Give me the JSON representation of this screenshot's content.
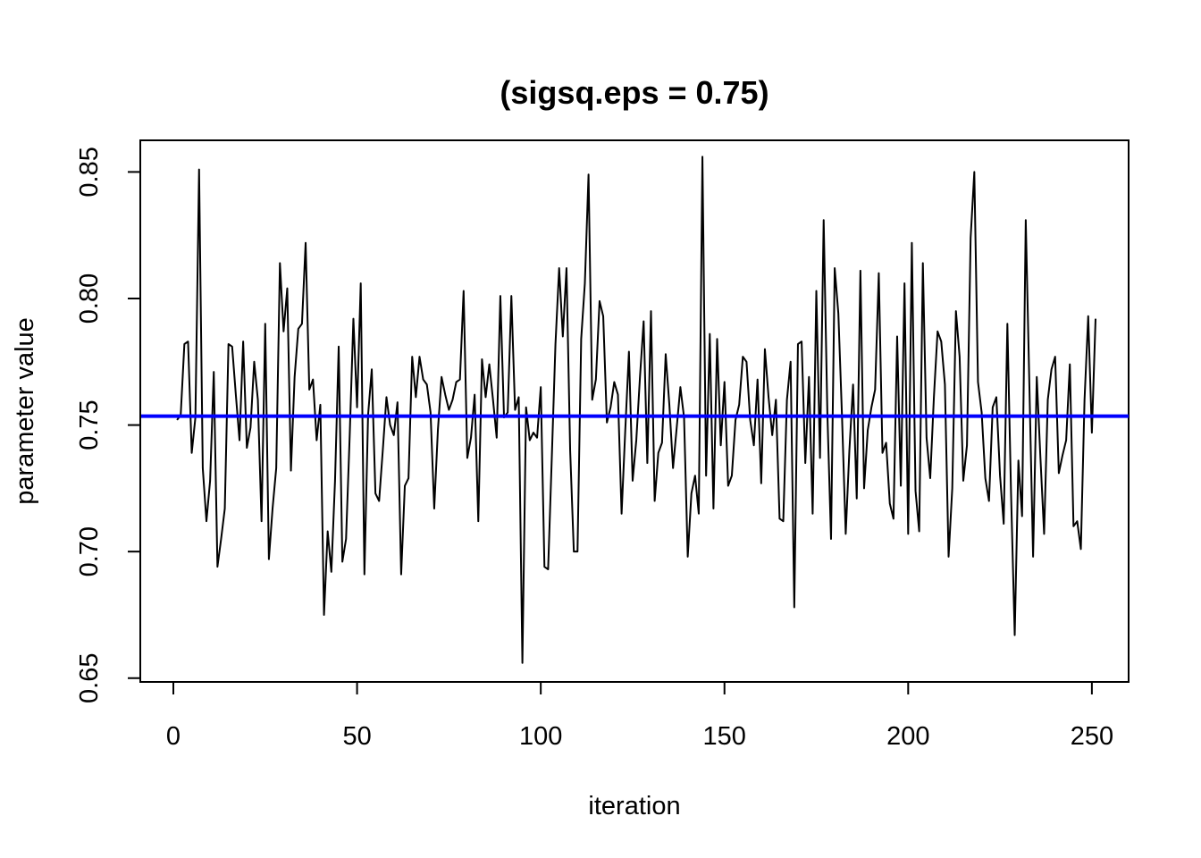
{
  "chart_data": {
    "type": "line",
    "title": "(sigsq.eps = 0.75)",
    "xlabel": "iteration",
    "ylabel": "parameter value",
    "xlim": [
      -9,
      260
    ],
    "ylim": [
      0.6485,
      0.8625
    ],
    "x_ticks": [
      0,
      50,
      100,
      150,
      200,
      250
    ],
    "x_tick_labels": [
      "0",
      "50",
      "100",
      "150",
      "200",
      "250"
    ],
    "y_ticks": [
      0.65,
      0.7,
      0.75,
      0.8,
      0.85
    ],
    "y_tick_labels": [
      "0.65",
      "0.70",
      "0.75",
      "0.80",
      "0.85"
    ],
    "grid": false,
    "hline": {
      "y": 0.7535,
      "color": "#0000ff"
    },
    "series": [
      {
        "color": "#000000",
        "x_start": 1,
        "values": [
          0.752,
          0.754,
          0.782,
          0.783,
          0.739,
          0.753,
          0.851,
          0.733,
          0.712,
          0.728,
          0.771,
          0.694,
          0.705,
          0.717,
          0.782,
          0.781,
          0.762,
          0.744,
          0.783,
          0.741,
          0.749,
          0.775,
          0.76,
          0.712,
          0.79,
          0.697,
          0.717,
          0.733,
          0.814,
          0.787,
          0.804,
          0.732,
          0.769,
          0.788,
          0.79,
          0.822,
          0.764,
          0.768,
          0.744,
          0.758,
          0.675,
          0.708,
          0.692,
          0.728,
          0.781,
          0.696,
          0.705,
          0.746,
          0.792,
          0.757,
          0.806,
          0.691,
          0.754,
          0.772,
          0.723,
          0.72,
          0.74,
          0.761,
          0.75,
          0.746,
          0.759,
          0.691,
          0.726,
          0.729,
          0.777,
          0.761,
          0.777,
          0.768,
          0.766,
          0.755,
          0.717,
          0.748,
          0.769,
          0.762,
          0.756,
          0.76,
          0.767,
          0.768,
          0.803,
          0.737,
          0.745,
          0.762,
          0.712,
          0.776,
          0.761,
          0.774,
          0.76,
          0.745,
          0.801,
          0.753,
          0.755,
          0.801,
          0.756,
          0.761,
          0.656,
          0.757,
          0.744,
          0.747,
          0.745,
          0.765,
          0.694,
          0.693,
          0.737,
          0.782,
          0.812,
          0.785,
          0.812,
          0.74,
          0.7,
          0.7,
          0.784,
          0.806,
          0.849,
          0.76,
          0.768,
          0.799,
          0.793,
          0.751,
          0.757,
          0.767,
          0.762,
          0.715,
          0.748,
          0.779,
          0.728,
          0.744,
          0.769,
          0.791,
          0.735,
          0.795,
          0.72,
          0.739,
          0.743,
          0.778,
          0.758,
          0.733,
          0.749,
          0.765,
          0.753,
          0.698,
          0.723,
          0.73,
          0.715,
          0.856,
          0.73,
          0.786,
          0.717,
          0.784,
          0.742,
          0.767,
          0.726,
          0.73,
          0.752,
          0.758,
          0.777,
          0.775,
          0.752,
          0.742,
          0.768,
          0.727,
          0.78,
          0.761,
          0.746,
          0.76,
          0.713,
          0.712,
          0.76,
          0.775,
          0.678,
          0.782,
          0.783,
          0.735,
          0.769,
          0.715,
          0.803,
          0.737,
          0.831,
          0.755,
          0.705,
          0.812,
          0.794,
          0.753,
          0.707,
          0.74,
          0.766,
          0.721,
          0.811,
          0.725,
          0.748,
          0.757,
          0.764,
          0.81,
          0.739,
          0.743,
          0.719,
          0.713,
          0.785,
          0.726,
          0.806,
          0.707,
          0.822,
          0.724,
          0.708,
          0.814,
          0.745,
          0.729,
          0.761,
          0.787,
          0.783,
          0.766,
          0.698,
          0.725,
          0.795,
          0.777,
          0.728,
          0.742,
          0.824,
          0.85,
          0.767,
          0.755,
          0.729,
          0.72,
          0.757,
          0.761,
          0.73,
          0.711,
          0.79,
          0.723,
          0.667,
          0.736,
          0.714,
          0.831,
          0.765,
          0.698,
          0.769,
          0.737,
          0.707,
          0.76,
          0.772,
          0.777,
          0.731,
          0.738,
          0.744,
          0.774,
          0.71,
          0.712,
          0.701,
          0.76,
          0.793,
          0.747,
          0.792
        ]
      }
    ]
  }
}
